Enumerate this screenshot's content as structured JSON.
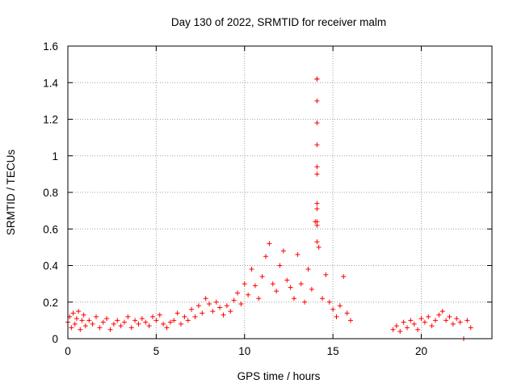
{
  "chart_data": {
    "type": "scatter",
    "title": "Day 130 of 2022, SRMTID for receiver malm",
    "xlabel": "GPS time / hours",
    "ylabel": "SRMTID / TECUs",
    "xlim": [
      0,
      24
    ],
    "ylim": [
      0,
      1.6
    ],
    "x_ticks": [
      "0",
      "5",
      "10",
      "15",
      "20"
    ],
    "x_tick_values": [
      0,
      5,
      10,
      15,
      20
    ],
    "y_ticks": [
      "0",
      "0.2",
      "0.4",
      "0.6",
      "0.8",
      "1",
      "1.2",
      "1.4",
      "1.6"
    ],
    "y_tick_values": [
      0,
      0.2,
      0.4,
      0.6,
      0.8,
      1.0,
      1.2,
      1.4,
      1.6
    ],
    "grid": true,
    "marker": "+",
    "series_color": "#ff0000",
    "series": [
      {
        "name": "malm",
        "x": [
          0.0,
          0.1,
          0.2,
          0.3,
          0.4,
          0.5,
          0.6,
          0.7,
          0.8,
          0.9,
          1.0,
          1.2,
          1.4,
          1.6,
          1.8,
          2.0,
          2.2,
          2.4,
          2.6,
          2.8,
          3.0,
          3.2,
          3.4,
          3.6,
          3.8,
          4.0,
          4.2,
          4.4,
          4.6,
          4.8,
          5.0,
          5.2,
          5.4,
          5.6,
          5.8,
          6.0,
          6.2,
          6.4,
          6.6,
          6.8,
          7.0,
          7.2,
          7.4,
          7.6,
          7.8,
          8.0,
          8.2,
          8.4,
          8.6,
          8.8,
          9.0,
          9.2,
          9.4,
          9.6,
          9.8,
          10.0,
          10.2,
          10.4,
          10.6,
          10.8,
          11.0,
          11.2,
          11.4,
          11.6,
          11.8,
          12.0,
          12.2,
          12.4,
          12.6,
          12.8,
          13.0,
          13.2,
          13.4,
          13.6,
          13.8,
          14.0,
          14.1,
          14.2,
          14.4,
          14.6,
          14.8,
          15.0,
          15.2,
          15.4,
          15.6,
          15.8,
          16.0,
          18.4,
          18.6,
          18.8,
          19.0,
          19.2,
          19.4,
          19.6,
          19.8,
          20.0,
          20.2,
          20.4,
          20.6,
          20.8,
          21.0,
          21.2,
          21.4,
          21.6,
          21.8,
          22.0,
          22.2,
          22.4,
          22.6,
          22.8
        ],
        "y": [
          0.09,
          0.12,
          0.06,
          0.14,
          0.08,
          0.11,
          0.15,
          0.05,
          0.1,
          0.13,
          0.07,
          0.1,
          0.08,
          0.12,
          0.06,
          0.09,
          0.11,
          0.05,
          0.08,
          0.1,
          0.07,
          0.09,
          0.12,
          0.06,
          0.1,
          0.08,
          0.11,
          0.09,
          0.07,
          0.12,
          0.1,
          0.13,
          0.08,
          0.06,
          0.09,
          0.1,
          0.14,
          0.08,
          0.12,
          0.1,
          0.16,
          0.12,
          0.18,
          0.14,
          0.22,
          0.19,
          0.15,
          0.2,
          0.17,
          0.13,
          0.18,
          0.15,
          0.21,
          0.25,
          0.19,
          0.3,
          0.24,
          0.38,
          0.29,
          0.22,
          0.34,
          0.45,
          0.52,
          0.3,
          0.26,
          0.4,
          0.48,
          0.32,
          0.28,
          0.22,
          0.46,
          0.3,
          0.2,
          0.38,
          0.27,
          0.64,
          1.42,
          0.5,
          0.22,
          0.35,
          0.2,
          0.16,
          0.12,
          0.18,
          0.34,
          0.14,
          0.1,
          0.05,
          0.07,
          0.04,
          0.09,
          0.06,
          0.1,
          0.08,
          0.05,
          0.11,
          0.09,
          0.12,
          0.07,
          0.1,
          0.13,
          0.15,
          0.1,
          0.12,
          0.08,
          0.11,
          0.09,
          0.0,
          0.1,
          0.06
        ],
        "peak_values_near_14h": [
          1.42,
          1.3,
          1.18,
          1.06,
          0.94,
          0.9,
          0.74,
          0.71,
          0.64,
          0.62,
          0.53
        ]
      }
    ]
  }
}
